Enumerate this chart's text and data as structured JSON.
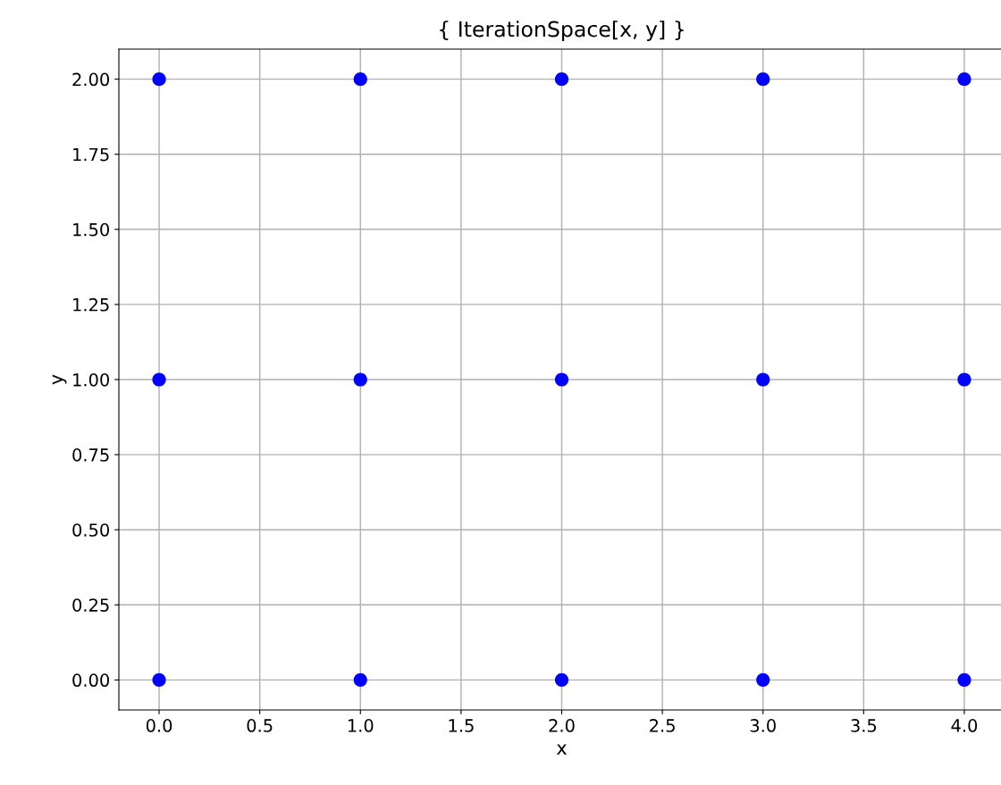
{
  "chart_data": {
    "type": "scatter",
    "title": "{ IterationSpace[x, y] }",
    "xlabel": "x",
    "ylabel": "y",
    "x": [
      0,
      1,
      2,
      3,
      4,
      0,
      1,
      2,
      3,
      4,
      0,
      1,
      2,
      3,
      4
    ],
    "values": [
      0,
      0,
      0,
      0,
      0,
      1,
      1,
      1,
      1,
      1,
      2,
      2,
      2,
      2,
      2
    ],
    "color": "#0000ff",
    "marker": "circle",
    "grid": true,
    "xlim": [
      -0.2,
      4.2
    ],
    "xticks": [
      {
        "value": 0,
        "label": "0.0"
      },
      {
        "value": 0.5,
        "label": "0.5"
      },
      {
        "value": 1,
        "label": "1.0"
      },
      {
        "value": 1.5,
        "label": "1.5"
      },
      {
        "value": 2,
        "label": "2.0"
      },
      {
        "value": 2.5,
        "label": "2.5"
      },
      {
        "value": 3,
        "label": "3.0"
      },
      {
        "value": 3.5,
        "label": "3.5"
      },
      {
        "value": 4,
        "label": "4.0"
      }
    ],
    "ylim": [
      -0.1,
      2.1
    ],
    "yticks": [
      {
        "value": 0,
        "label": "0.00"
      },
      {
        "value": 0.25,
        "label": "0.25"
      },
      {
        "value": 0.5,
        "label": "0.50"
      },
      {
        "value": 0.75,
        "label": "0.75"
      },
      {
        "value": 1,
        "label": "1.00"
      },
      {
        "value": 1.25,
        "label": "1.25"
      },
      {
        "value": 1.5,
        "label": "1.50"
      },
      {
        "value": 1.75,
        "label": "1.75"
      },
      {
        "value": 2,
        "label": "2.00"
      }
    ]
  }
}
